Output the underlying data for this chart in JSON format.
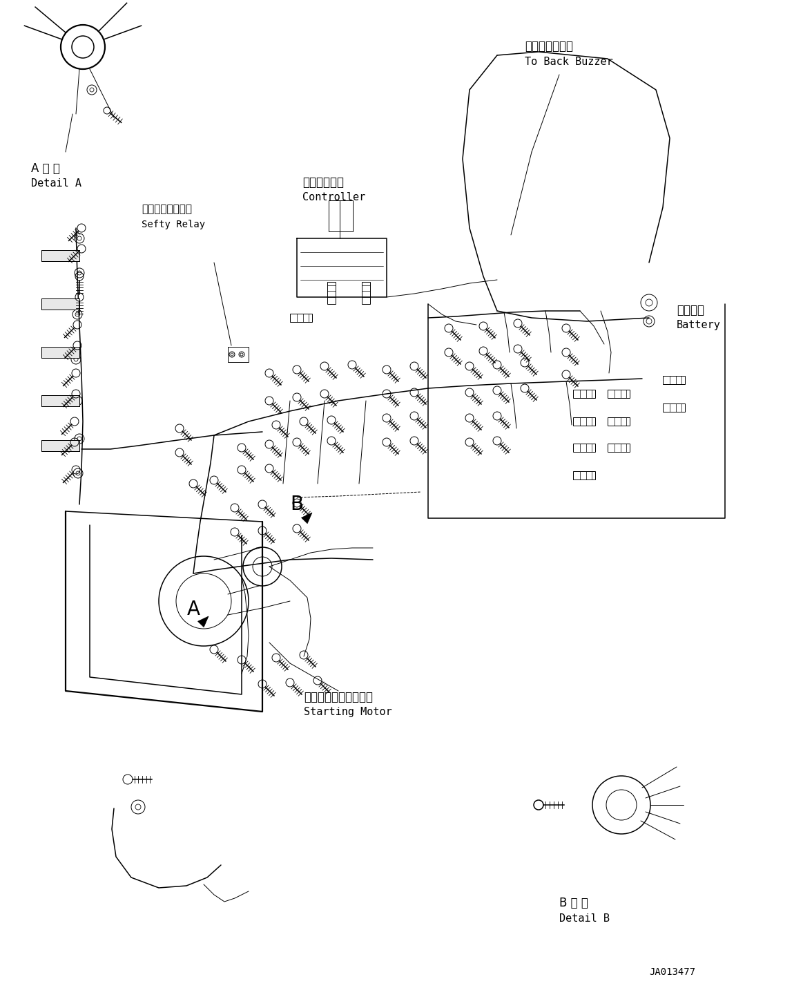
{
  "figure_width": 11.63,
  "figure_height": 14.43,
  "dpi": 100,
  "bg_color": "#ffffff",
  "line_color": "#000000",
  "part_number": "JA013477",
  "labels": {
    "back_buzzer_jp": "バックブザーへ",
    "back_buzzer_en": "To Back Buzzer",
    "controller_jp": "コントローラ",
    "controller_en": "Controller",
    "safety_relay_jp": "セーフティリレー",
    "safety_relay_en": "Sefty Relay",
    "battery_jp": "バッテリ",
    "battery_en": "Battery",
    "starting_motor_jp": "スターティングモータ",
    "starting_motor_en": "Starting Motor",
    "detail_a_jp": "A 詳 細",
    "detail_a_en": "Detail A",
    "detail_b_jp": "B 詳 細",
    "detail_b_en": "Detail B",
    "label_a": "A",
    "label_b": "B"
  }
}
